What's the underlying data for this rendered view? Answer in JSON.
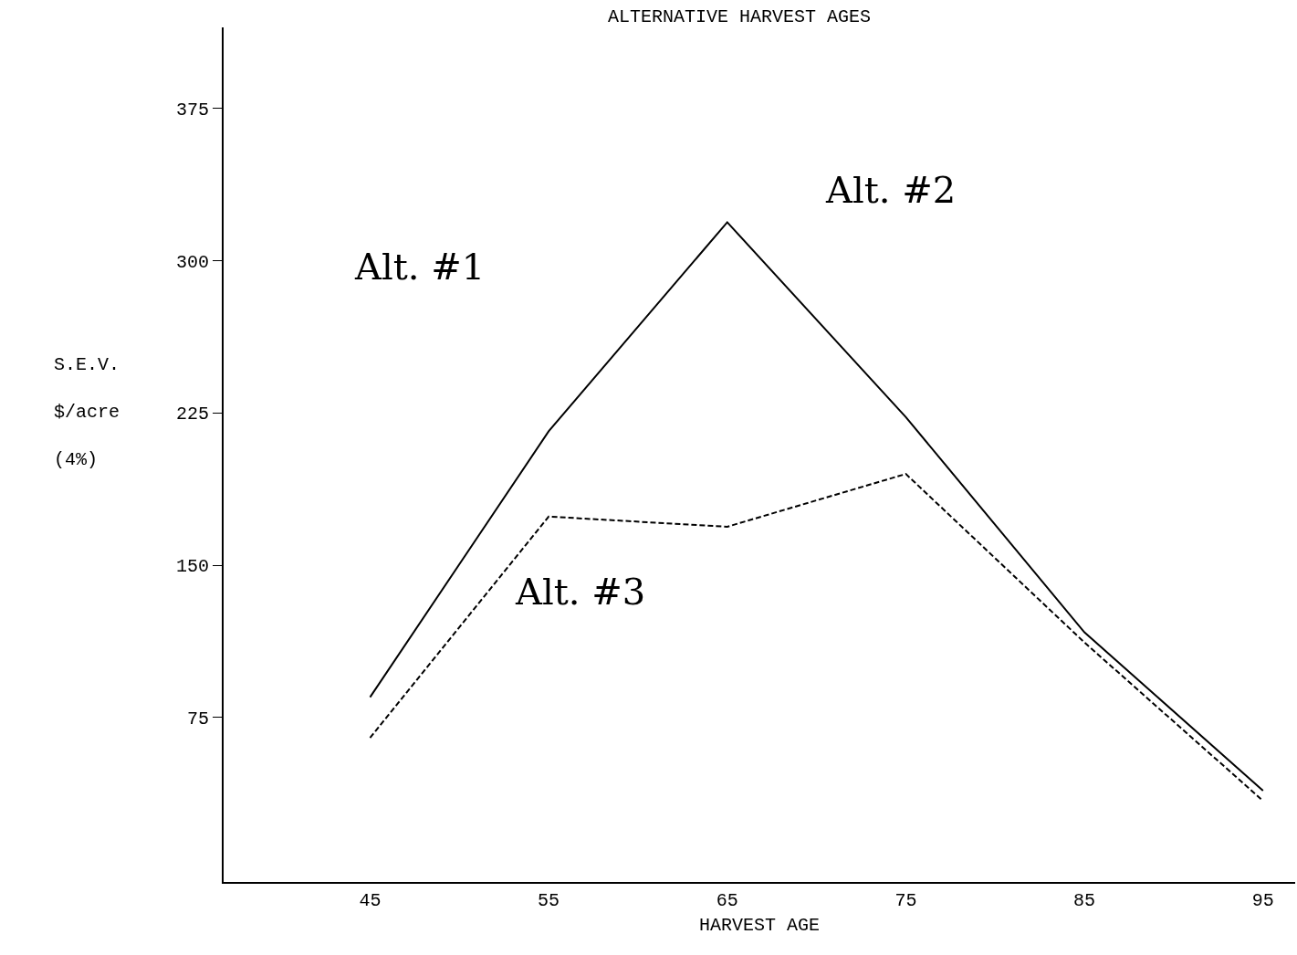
{
  "chart_data": {
    "type": "line",
    "title": "ALTERNATIVE HARVEST AGES",
    "xlabel": "HARVEST AGE",
    "ylabel": "S.E.V.\n$/acre\n(4%)",
    "x": [
      45,
      55,
      65,
      75,
      85,
      95
    ],
    "series": [
      {
        "color": "#000000",
        "line_style": "solid",
        "values": [
          85,
          216,
          319,
          223,
          117,
          39
        ]
      },
      {
        "color": "#000000",
        "line_style": "dashed",
        "values": [
          65,
          174,
          169,
          195,
          112,
          34
        ]
      }
    ],
    "xlim": [
      36.8,
      96.8
    ],
    "xticks": [
      45,
      55,
      65,
      75,
      85,
      95
    ],
    "ylim": [
      -6,
      415
    ],
    "yticks": [
      75,
      150,
      225,
      300,
      375
    ],
    "grid": false,
    "marker": "none",
    "annotations": [
      "Alt. #1",
      "Alt. #2",
      "Alt. #3"
    ]
  }
}
